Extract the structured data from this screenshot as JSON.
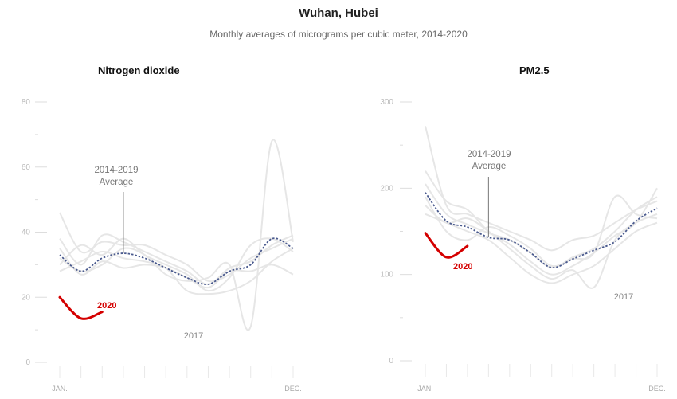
{
  "title": "Wuhan, Hubei",
  "subtitle": "Monthly averages of micrograms per cubic meter, 2014-2020",
  "chart_data": [
    {
      "type": "line",
      "title": "Nitrogen dioxide",
      "ylim": [
        0,
        80
      ],
      "yticks": [
        0,
        20,
        40,
        60,
        80
      ],
      "months": [
        1,
        2,
        3,
        4,
        5,
        6,
        7,
        8,
        9,
        10,
        11,
        12
      ],
      "month_labels": {
        "jan": "JAN.",
        "dec": "DEC."
      },
      "background_series": [
        {
          "values": [
            46,
            34,
            37,
            36,
            36,
            33,
            30,
            25,
            27,
            32,
            35,
            38
          ]
        },
        {
          "values": [
            38,
            30,
            39,
            37,
            34,
            31,
            28,
            24,
            29,
            31,
            36,
            39
          ]
        },
        {
          "values": [
            30,
            36,
            33,
            38,
            33,
            30,
            27,
            22,
            26,
            36,
            38,
            34
          ]
        },
        {
          "values": [
            35,
            27,
            31,
            29,
            30,
            29,
            26,
            23,
            28,
            28,
            30,
            27
          ]
        },
        {
          "values": [
            28,
            31,
            34,
            32,
            31,
            29,
            22,
            21,
            22,
            25,
            31,
            35
          ]
        },
        {
          "values": [
            32,
            28,
            30,
            35,
            33,
            27,
            25,
            26,
            30,
            11,
            68,
            37
          ]
        }
      ],
      "average": {
        "name": "2014-2019 Average",
        "values": [
          33,
          28,
          32,
          33.5,
          32,
          29,
          26,
          24,
          28,
          30,
          38,
          35
        ]
      },
      "highlight": {
        "name": "2020",
        "values": [
          20,
          13.5,
          15.5
        ]
      },
      "annotations": {
        "avg_line1": "2014-2019",
        "avg_line2": "Average",
        "year_label": "2017"
      }
    },
    {
      "type": "line",
      "title": "PM2.5",
      "ylim": [
        0,
        300
      ],
      "yticks": [
        0,
        100,
        200,
        300
      ],
      "months": [
        1,
        2,
        3,
        4,
        5,
        6,
        7,
        8,
        9,
        10,
        11,
        12
      ],
      "month_labels": {
        "jan": "JAN.",
        "dec": "DEC."
      },
      "background_series": [
        {
          "values": [
            272,
            180,
            170,
            160,
            150,
            140,
            128,
            140,
            145,
            160,
            175,
            185
          ]
        },
        {
          "values": [
            220,
            185,
            175,
            150,
            135,
            115,
            100,
            110,
            125,
            145,
            160,
            200
          ]
        },
        {
          "values": [
            205,
            170,
            158,
            148,
            140,
            125,
            108,
            120,
            130,
            150,
            175,
            190
          ]
        },
        {
          "values": [
            180,
            160,
            165,
            150,
            130,
            110,
            95,
            105,
            85,
            140,
            160,
            170
          ]
        },
        {
          "values": [
            170,
            160,
            150,
            140,
            120,
            100,
            90,
            100,
            110,
            130,
            150,
            160
          ]
        },
        {
          "values": [
            190,
            150,
            140,
            155,
            145,
            130,
            110,
            118,
            125,
            190,
            170,
            165
          ]
        }
      ],
      "average": {
        "name": "2014-2019 Average",
        "values": [
          195,
          162,
          155,
          143,
          140,
          125,
          108,
          118,
          128,
          138,
          162,
          177
        ]
      },
      "highlight": {
        "name": "2020",
        "values": [
          148,
          120,
          133
        ]
      },
      "annotations": {
        "avg_line1": "2014-2019",
        "avg_line2": "Average",
        "year_label": "2017"
      }
    }
  ],
  "colors": {
    "average": "#4a5a8e",
    "highlight": "#d40000",
    "background": "#e6e6e6",
    "annot_line": "#777777"
  }
}
